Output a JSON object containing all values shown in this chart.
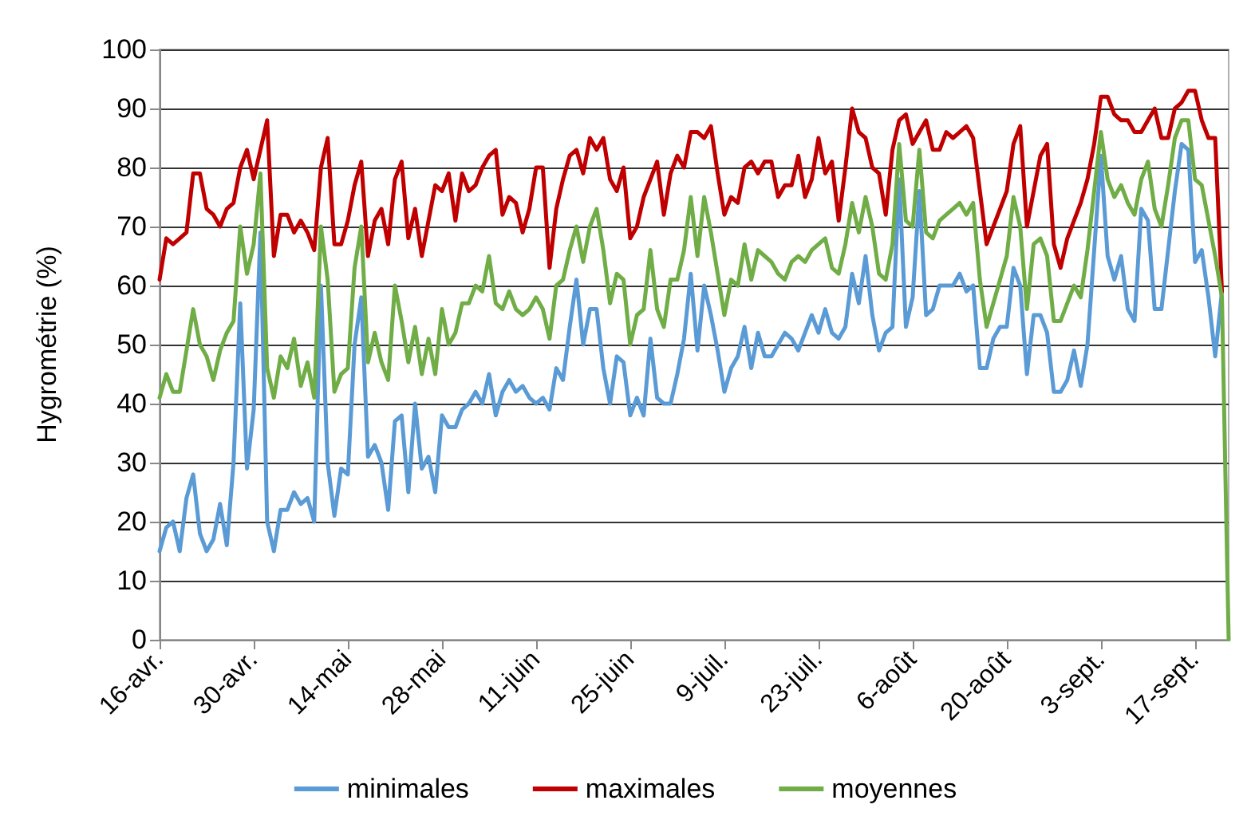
{
  "chart_data": {
    "type": "line",
    "ylabel": "Hygrométrie (%)",
    "categories": [
      "16-avr.",
      null,
      null,
      null,
      null,
      null,
      null,
      null,
      null,
      null,
      null,
      null,
      null,
      null,
      "30-avr.",
      null,
      null,
      null,
      null,
      null,
      null,
      null,
      null,
      null,
      null,
      null,
      null,
      null,
      "14-mai",
      null,
      null,
      null,
      null,
      null,
      null,
      null,
      null,
      null,
      null,
      null,
      null,
      null,
      "28-mai",
      null,
      null,
      null,
      null,
      null,
      null,
      null,
      null,
      null,
      null,
      null,
      null,
      null,
      "11-juin",
      null,
      null,
      null,
      null,
      null,
      null,
      null,
      null,
      null,
      null,
      null,
      null,
      null,
      "25-juin",
      null,
      null,
      null,
      null,
      null,
      null,
      null,
      null,
      null,
      null,
      null,
      null,
      null,
      "9-juil.",
      null,
      null,
      null,
      null,
      null,
      null,
      null,
      null,
      null,
      null,
      null,
      null,
      null,
      "23-juil.",
      null,
      null,
      null,
      null,
      null,
      null,
      null,
      null,
      null,
      null,
      null,
      null,
      null,
      "6-août",
      null,
      null,
      null,
      null,
      null,
      null,
      null,
      null,
      null,
      null,
      null,
      null,
      null,
      "20-août",
      null,
      null,
      null,
      null,
      null,
      null,
      null,
      null,
      null,
      null,
      null,
      null,
      null,
      "3-sept.",
      null,
      null,
      null,
      null,
      null,
      null,
      null,
      null,
      null,
      null,
      null,
      null,
      null,
      "17-sept.",
      null,
      null,
      null,
      null,
      null
    ],
    "series": [
      {
        "name": "minimales",
        "color": "#5b9bd5",
        "values": [
          15,
          19,
          20,
          15,
          24,
          28,
          18,
          15,
          17,
          23,
          16,
          30,
          57,
          29,
          39,
          69,
          20,
          15,
          22,
          22,
          25,
          23,
          24,
          20,
          60,
          30,
          21,
          29,
          28,
          50,
          58,
          31,
          33,
          30,
          22,
          37,
          38,
          25,
          40,
          29,
          31,
          25,
          38,
          36,
          36,
          39,
          40,
          42,
          40,
          45,
          38,
          42,
          44,
          42,
          43,
          41,
          40,
          41,
          39,
          46,
          44,
          53,
          61,
          50,
          56,
          56,
          46,
          40,
          48,
          47,
          38,
          41,
          38,
          51,
          41,
          40,
          40,
          45,
          51,
          62,
          49,
          60,
          55,
          49,
          42,
          46,
          48,
          53,
          46,
          52,
          48,
          48,
          50,
          52,
          51,
          49,
          52,
          55,
          52,
          56,
          52,
          51,
          53,
          62,
          57,
          65,
          55,
          49,
          52,
          53,
          78,
          53,
          58,
          76,
          55,
          56,
          60,
          60,
          60,
          62,
          59,
          60,
          46,
          46,
          51,
          53,
          53,
          63,
          60,
          45,
          55,
          55,
          52,
          42,
          42,
          44,
          49,
          43,
          50,
          66,
          82,
          65,
          61,
          65,
          56,
          54,
          73,
          71,
          56,
          56,
          66,
          76,
          84,
          83,
          64,
          66,
          58,
          48,
          59,
          null
        ]
      },
      {
        "name": "maximales",
        "color": "#c00000",
        "values": [
          61,
          68,
          67,
          68,
          69,
          79,
          79,
          73,
          72,
          70,
          73,
          74,
          80,
          83,
          78,
          83,
          88,
          65,
          72,
          72,
          69,
          71,
          69,
          66,
          80,
          85,
          67,
          67,
          71,
          77,
          81,
          65,
          71,
          73,
          67,
          78,
          81,
          68,
          73,
          65,
          71,
          77,
          76,
          79,
          71,
          79,
          76,
          77,
          80,
          82,
          83,
          72,
          75,
          74,
          69,
          73,
          80,
          80,
          63,
          73,
          78,
          82,
          83,
          79,
          85,
          83,
          85,
          78,
          76,
          80,
          68,
          70,
          75,
          78,
          81,
          72,
          79,
          82,
          80,
          86,
          86,
          85,
          87,
          79,
          72,
          75,
          74,
          80,
          81,
          79,
          81,
          81,
          75,
          77,
          77,
          82,
          75,
          78,
          85,
          79,
          81,
          71,
          80,
          90,
          86,
          85,
          80,
          79,
          72,
          83,
          88,
          89,
          84,
          86,
          88,
          83,
          83,
          86,
          85,
          86,
          87,
          85,
          76,
          67,
          70,
          73,
          76,
          84,
          87,
          70,
          76,
          82,
          84,
          67,
          63,
          68,
          71,
          74,
          78,
          84,
          92,
          92,
          89,
          88,
          88,
          86,
          86,
          88,
          90,
          85,
          85,
          90,
          91,
          93,
          93,
          88,
          85,
          85,
          59,
          null
        ]
      },
      {
        "name": "moyennes",
        "color": "#70ad47",
        "values": [
          41,
          45,
          42,
          42,
          49,
          56,
          50,
          48,
          44,
          49,
          52,
          54,
          70,
          62,
          67,
          79,
          46,
          41,
          48,
          46,
          51,
          43,
          47,
          41,
          70,
          61,
          42,
          45,
          46,
          63,
          70,
          47,
          52,
          47,
          44,
          60,
          54,
          47,
          53,
          45,
          51,
          45,
          56,
          50,
          52,
          57,
          57,
          60,
          59,
          65,
          57,
          56,
          59,
          56,
          55,
          56,
          58,
          56,
          51,
          60,
          61,
          66,
          70,
          64,
          70,
          73,
          66,
          57,
          62,
          61,
          50,
          55,
          56,
          66,
          56,
          53,
          61,
          61,
          66,
          75,
          65,
          75,
          69,
          62,
          55,
          61,
          60,
          67,
          61,
          66,
          65,
          64,
          62,
          61,
          64,
          65,
          64,
          66,
          67,
          68,
          63,
          62,
          67,
          74,
          69,
          75,
          70,
          62,
          61,
          67,
          84,
          71,
          70,
          83,
          69,
          68,
          71,
          72,
          73,
          74,
          72,
          74,
          61,
          53,
          57,
          61,
          65,
          75,
          70,
          56,
          67,
          68,
          65,
          54,
          54,
          57,
          60,
          58,
          66,
          76,
          86,
          78,
          75,
          77,
          74,
          72,
          78,
          81,
          73,
          70,
          77,
          85,
          88,
          88,
          78,
          77,
          71,
          65,
          58,
          0
        ]
      }
    ],
    "ylim": [
      0,
      100
    ],
    "yticks": [
      0,
      10,
      20,
      30,
      40,
      50,
      60,
      70,
      80,
      90,
      100
    ],
    "grid": "y",
    "legend": "bottom",
    "marker": "none",
    "line_style": "solid"
  }
}
